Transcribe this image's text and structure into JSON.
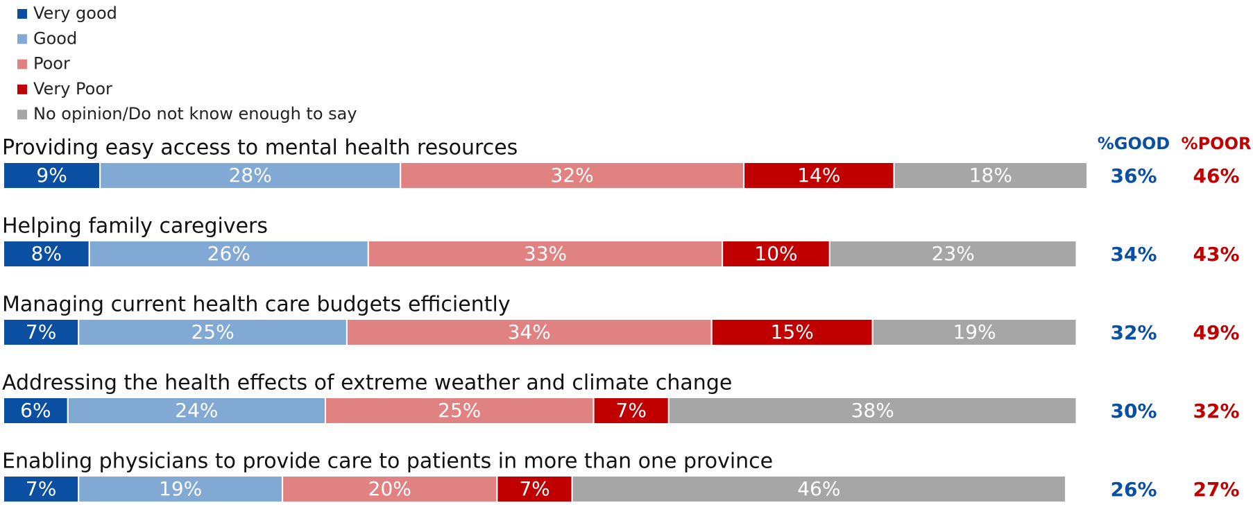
{
  "chart_data": {
    "type": "bar",
    "orientation": "horizontal",
    "stacked": true,
    "categories": [
      "Providing easy access to mental health resources",
      "Helping family caregivers",
      "Managing current health care budgets efficiently",
      "Addressing the health effects of extreme weather and climate change",
      "Enabling physicians to provide care to patients in more than one province"
    ],
    "xlim": [
      0,
      101
    ],
    "legend": "top-left",
    "series": [
      {
        "name": "Very good",
        "color": "#0b4fa3",
        "values": [
          9,
          8,
          7,
          6,
          7
        ],
        "value_labels": [
          "9%",
          "8%",
          "7%",
          "6%",
          "7%"
        ]
      },
      {
        "name": "Good",
        "color": "#82a8d4",
        "values": [
          28,
          26,
          25,
          24,
          19
        ],
        "value_labels": [
          "28%",
          "26%",
          "25%",
          "24%",
          "19%"
        ]
      },
      {
        "name": "Poor",
        "color": "#e08282",
        "values": [
          32,
          33,
          34,
          25,
          20
        ],
        "value_labels": [
          "32%",
          "33%",
          "34%",
          "25%",
          "20%"
        ]
      },
      {
        "name": "Very Poor",
        "color": "#c00000",
        "values": [
          14,
          10,
          15,
          7,
          7
        ],
        "value_labels": [
          "14%",
          "10%",
          "15%",
          "7%",
          "7%"
        ]
      },
      {
        "name": "No opinion/Do not know enough to say",
        "color": "#a6a6a6",
        "values": [
          18,
          23,
          19,
          38,
          46
        ],
        "value_labels": [
          "18%",
          "23%",
          "19%",
          "38%",
          "46%"
        ]
      }
    ],
    "summary": [
      {
        "header": "%GOOD",
        "color": "#0b4fa3",
        "values": [
          36,
          34,
          32,
          30,
          26
        ],
        "value_labels": [
          "36%",
          "34%",
          "32%",
          "30%",
          "26%"
        ]
      },
      {
        "header": "%POOR",
        "color": "#c00000",
        "values": [
          46,
          43,
          49,
          32,
          27
        ],
        "value_labels": [
          "46%",
          "43%",
          "49%",
          "32%",
          "27%"
        ]
      }
    ]
  }
}
